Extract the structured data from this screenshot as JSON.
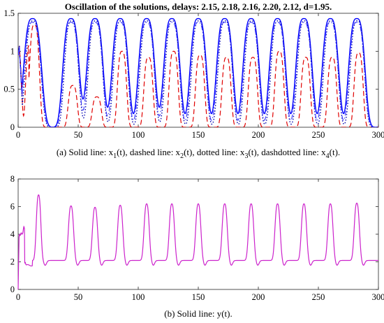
{
  "figure": {
    "title": "Oscillation of the solutions, delays: 2.15, 2.18, 2.16, 2.20, 2.12, d=1.95."
  },
  "chart_data": [
    {
      "type": "line",
      "caption": {
        "prefix": "(a) Solid line: x",
        "parts": [
          {
            "sub": "1",
            "after": "(t), dashed line: x"
          },
          {
            "sub": "2",
            "after": "(t), dotted line: x"
          },
          {
            "sub": "3",
            "after": "(t), dashdotted line: x"
          },
          {
            "sub": "4",
            "after": "(t)."
          }
        ]
      },
      "xlim": [
        0,
        300
      ],
      "ylim": [
        0,
        1.5
      ],
      "xticks": [
        "0",
        "50",
        "100",
        "150",
        "200",
        "250",
        "300"
      ],
      "yticks": [
        "0",
        "0.5",
        "1",
        "1.5"
      ],
      "peak_centers": [
        12,
        44,
        64,
        85,
        107,
        128,
        150,
        172,
        194,
        216,
        238,
        260,
        282
      ],
      "series": [
        {
          "key": "x1",
          "style": "solid",
          "color": "#0000ff",
          "peak": 1.43,
          "halfwidth": 8
        },
        {
          "key": "x2",
          "style": "dashed",
          "color": "#e00000",
          "peaks": [
            1.35,
            0.55,
            0.4,
            1.0,
            0.92,
            1.0,
            0.95,
            0.92,
            0.92,
            1.0,
            0.92,
            0.92,
            0.98
          ],
          "halfwidth": 4.5
        },
        {
          "key": "x3",
          "style": "dotted",
          "color": "#0000b0",
          "peak": 1.4,
          "halfwidth": 7
        },
        {
          "key": "x4",
          "style": "dashdot",
          "color": "#4040ff",
          "peak": 1.38,
          "halfwidth": 7.5
        }
      ]
    },
    {
      "type": "line",
      "caption": {
        "text": "(b) Solid line: y(t)."
      },
      "xlim": [
        0,
        300
      ],
      "ylim": [
        0,
        8
      ],
      "xticks": [
        "0",
        "50",
        "100",
        "150",
        "200",
        "250",
        "300"
      ],
      "yticks": [
        "0",
        "2",
        "4",
        "6",
        "8"
      ],
      "series": [
        {
          "key": "y",
          "style": "solid",
          "color": "#cc22cc",
          "baseline": 2.1,
          "peaks": [
            [
              17,
              6.85
            ],
            [
              44,
              6.05
            ],
            [
              64,
              5.95
            ],
            [
              85,
              6.1
            ],
            [
              107,
              6.2
            ],
            [
              128,
              6.2
            ],
            [
              150,
              6.2
            ],
            [
              172,
              6.2
            ],
            [
              194,
              6.2
            ],
            [
              216,
              6.2
            ],
            [
              238,
              6.2
            ],
            [
              260,
              6.2
            ],
            [
              282,
              6.25
            ]
          ]
        }
      ]
    }
  ]
}
